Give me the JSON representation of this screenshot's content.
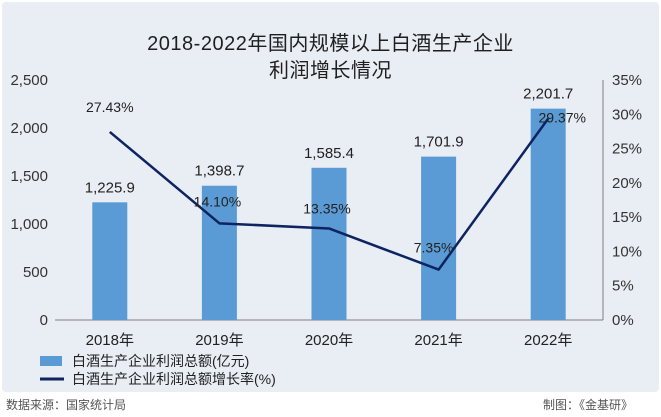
{
  "chart_data": {
    "type": "bar+line",
    "title_line1": "2018-2022年国内规模以上白酒生产企业",
    "title_line2": "利润增长情况",
    "categories": [
      "2018年",
      "2019年",
      "2020年",
      "2021年",
      "2022年"
    ],
    "series": [
      {
        "name": "白酒生产企业利润总额(亿元)",
        "type": "bar",
        "axis": "left",
        "color": "#5b9bd5",
        "values": [
          1225.9,
          1398.7,
          1585.4,
          1701.9,
          2201.7
        ],
        "labels": [
          "1,225.9",
          "1,398.7",
          "1,585.4",
          "1,701.9",
          "2,201.7"
        ]
      },
      {
        "name": "白酒生产企业利润总额增长率(%)",
        "type": "line",
        "axis": "right",
        "color": "#0d2461",
        "values": [
          27.43,
          14.1,
          13.35,
          7.35,
          29.37
        ],
        "labels": [
          "27.43%",
          "14.10%",
          "13.35%",
          "7.35%",
          "29.37%"
        ]
      }
    ],
    "left_axis": {
      "ylim": [
        0,
        2500
      ],
      "ticks": [
        0,
        500,
        1000,
        1500,
        2000,
        2500
      ],
      "tick_labels": [
        "0",
        "500",
        "1,000",
        "1,500",
        "2,000",
        "2,500"
      ]
    },
    "right_axis": {
      "ylim": [
        0,
        35
      ],
      "ticks": [
        0,
        5,
        10,
        15,
        20,
        25,
        30,
        35
      ],
      "tick_labels": [
        "0%",
        "5%",
        "10%",
        "15%",
        "20%",
        "25%",
        "30%",
        "35%"
      ]
    },
    "legend_position": "bottom-left",
    "grid": false
  },
  "footer": {
    "source": "数据来源：国家统计局",
    "credit": "制图：《金基研》"
  },
  "colors": {
    "background": "#e9edf4",
    "bar": "#5b9bd5",
    "line": "#0d2461",
    "axis": "#7f7f7f"
  }
}
